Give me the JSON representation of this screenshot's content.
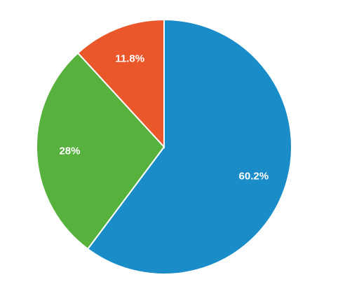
{
  "chart_data": {
    "type": "pie",
    "values": [
      60.2,
      28,
      11.8
    ],
    "value_labels": [
      "60.2%",
      "28%",
      "11.8%"
    ],
    "colors": [
      "#1a8dc8",
      "#57b23d",
      "#ea572a"
    ]
  }
}
